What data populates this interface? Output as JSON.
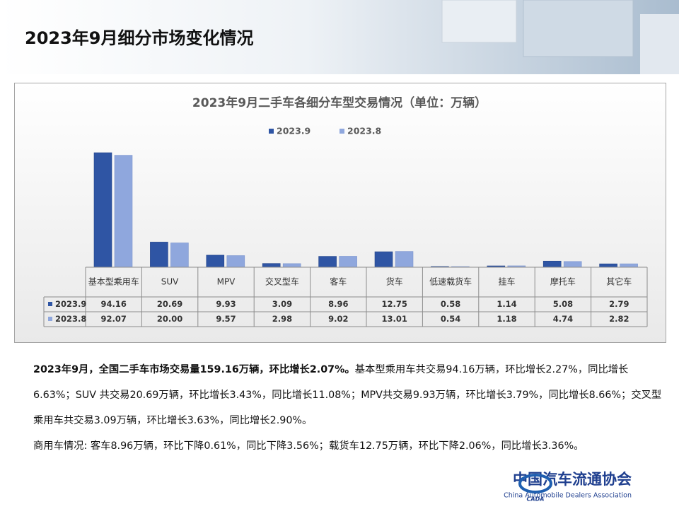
{
  "header": {
    "title": "2023年9月细分市场变化情况"
  },
  "chart_data": {
    "type": "bar",
    "title": "2023年9月二手车各细分车型交易情况（单位：万辆）",
    "categories": [
      "基本型乘用车",
      "SUV",
      "MPV",
      "交叉型车",
      "客车",
      "货车",
      "低速载货车",
      "挂车",
      "摩托车",
      "其它车"
    ],
    "series": [
      {
        "name": "2023.9",
        "color": "#2f55a4",
        "values": [
          94.16,
          20.69,
          9.93,
          3.09,
          8.96,
          12.75,
          0.58,
          1.14,
          5.08,
          2.79
        ],
        "value_labels": [
          "94.16",
          "20.69",
          "9.93",
          "3.09",
          "8.96",
          "12.75",
          "0.58",
          "1.14",
          "5.08",
          "2.79"
        ]
      },
      {
        "name": "2023.8",
        "color": "#8fa7dd",
        "values": [
          92.07,
          20,
          9.57,
          2.98,
          9.02,
          13.01,
          0.54,
          1.18,
          4.74,
          2.82
        ],
        "value_labels": [
          "92.07",
          "20.00",
          "9.57",
          "2.98",
          "9.02",
          "13.01",
          "0.54",
          "1.18",
          "4.74",
          "2.82"
        ]
      }
    ],
    "legend": "top"
  },
  "text": {
    "paragraphs": [
      {
        "bold": "2023年9月，全国二手车市场交易量159.16万辆，环比增长2.07%。",
        "text": "基本型乘用车共交易94.16万辆，环比增长2.27%，同比增长6.63%；SUV 共交易20.69万辆，环比增长3.43%，同比增长11.08%；MPV共交易9.93万辆，环比增长3.79%，同比增长8.66%；交叉型乘用车共交易3.09万辆，环比增长3.63%，同比增长2.90%。"
      },
      {
        "text": "商用车情况: 客车8.96万辆，环比下降0.61%，同比下降3.56%；载货车12.75万辆，环比下降2.06%，同比增长3.36%。"
      }
    ]
  },
  "logo": {
    "name_cn": "中国汽车流通协会",
    "name_en": "China Automobile Dealers Association",
    "mark": "CADA"
  }
}
